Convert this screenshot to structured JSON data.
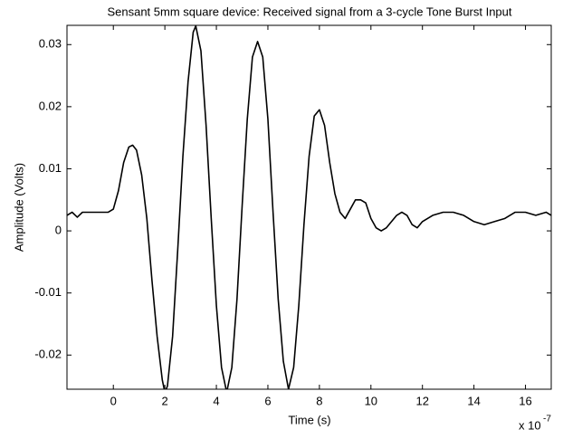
{
  "chart_data": {
    "type": "line",
    "title": "Sensant 5mm square device:  Received signal from a 3-cycle Tone Burst Input",
    "x_label": "Time (s)",
    "y_label": "Amplitude (Volts)",
    "x_scale_base": "x 10",
    "x_scale_exponent": "-7",
    "xlim": [
      -1.8,
      17
    ],
    "xticks": [
      0,
      2,
      4,
      6,
      8,
      10,
      12,
      14,
      16
    ],
    "ylim": [
      -0.0255,
      0.0331
    ],
    "yticks": [
      -0.02,
      -0.01,
      0,
      0.01,
      0.02,
      0.03
    ],
    "grid": false,
    "series": [
      {
        "color": "#000000",
        "x": [
          -1.8,
          -1.6,
          -1.4,
          -1.2,
          -1.0,
          -0.6,
          -0.2,
          0.0,
          0.2,
          0.4,
          0.6,
          0.75,
          0.9,
          1.1,
          1.3,
          1.5,
          1.7,
          1.9,
          2.0,
          2.1,
          2.3,
          2.5,
          2.7,
          2.9,
          3.1,
          3.2,
          3.4,
          3.6,
          3.8,
          4.0,
          4.2,
          4.4,
          4.6,
          4.8,
          5.0,
          5.2,
          5.4,
          5.6,
          5.8,
          6.0,
          6.2,
          6.4,
          6.6,
          6.8,
          7.0,
          7.2,
          7.4,
          7.6,
          7.8,
          8.0,
          8.2,
          8.4,
          8.6,
          8.8,
          9.0,
          9.2,
          9.4,
          9.6,
          9.8,
          10.0,
          10.2,
          10.4,
          10.6,
          10.8,
          11.0,
          11.2,
          11.4,
          11.6,
          11.8,
          12.0,
          12.4,
          12.8,
          13.2,
          13.6,
          14.0,
          14.4,
          14.8,
          15.2,
          15.6,
          16.0,
          16.4,
          16.8,
          17.0
        ],
        "values": [
          0.0025,
          0.003,
          0.0022,
          0.003,
          0.003,
          0.003,
          0.003,
          0.0035,
          0.0065,
          0.011,
          0.0135,
          0.0138,
          0.013,
          0.009,
          0.002,
          -0.008,
          -0.017,
          -0.024,
          -0.026,
          -0.025,
          -0.017,
          -0.003,
          0.012,
          0.024,
          0.032,
          0.033,
          0.029,
          0.017,
          0.002,
          -0.012,
          -0.022,
          -0.026,
          -0.022,
          -0.011,
          0.004,
          0.018,
          0.028,
          0.0305,
          0.028,
          0.018,
          0.003,
          -0.011,
          -0.021,
          -0.0255,
          -0.022,
          -0.012,
          0.001,
          0.012,
          0.0185,
          0.0195,
          0.017,
          0.011,
          0.006,
          0.003,
          0.002,
          0.0035,
          0.005,
          0.005,
          0.0045,
          0.002,
          0.0005,
          0.0,
          0.0005,
          0.0015,
          0.0025,
          0.003,
          0.0025,
          0.001,
          0.0005,
          0.0015,
          0.0025,
          0.003,
          0.003,
          0.0025,
          0.0015,
          0.001,
          0.0015,
          0.002,
          0.003,
          0.003,
          0.0025,
          0.003,
          0.0025
        ]
      }
    ]
  }
}
